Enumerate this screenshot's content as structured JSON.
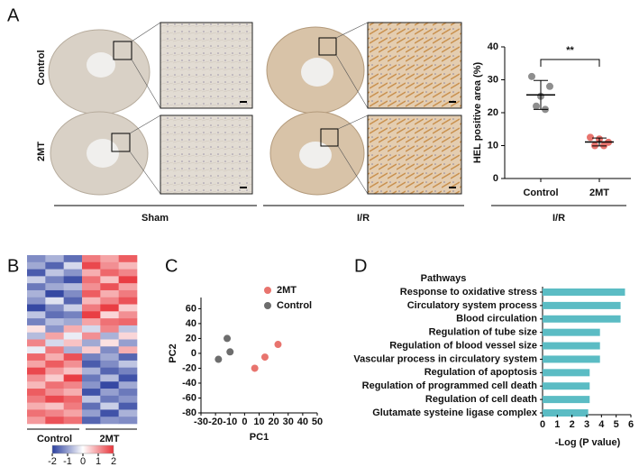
{
  "figure": {
    "panels": [
      "A",
      "B",
      "C",
      "D"
    ],
    "rows": [
      "Control",
      "2MT"
    ],
    "groups": [
      "Sham",
      "I/R"
    ]
  },
  "chart_data": [
    {
      "type": "dot",
      "ylabel": "HEL positive area (%)",
      "categories": [
        "Control",
        "2MT"
      ],
      "points": [
        [
          31,
          28,
          22,
          21,
          25
        ],
        [
          12.5,
          11,
          10,
          10,
          12
        ]
      ],
      "colors": [
        "#8e8e8e",
        "#e8746e"
      ],
      "means": [
        25.4,
        11.1
      ],
      "errors": [
        4.4,
        1.2
      ],
      "significance": "**",
      "group_label": "I/R",
      "ylim": [
        0,
        40
      ],
      "yticks": [
        0,
        10,
        20,
        30,
        40
      ]
    },
    {
      "type": "heatmap",
      "groups": [
        "Control",
        "2MT"
      ],
      "colormap": [
        "#2b3f9e",
        "#ffffff",
        "#e8343a"
      ],
      "clim": [
        -2,
        2
      ],
      "cticks": [
        -2,
        -1,
        0,
        1,
        2
      ],
      "values": [
        [
          -1.2,
          -0.8,
          -1.5,
          1.3,
          0.9,
          1.6
        ],
        [
          -0.9,
          -1.6,
          -0.4,
          1.8,
          1.1,
          0.7
        ],
        [
          -1.7,
          -0.6,
          -1.1,
          0.8,
          1.5,
          1.2
        ],
        [
          -0.5,
          -1.3,
          -1.8,
          1.4,
          0.6,
          1.9
        ],
        [
          -1.4,
          -0.9,
          -0.7,
          1.1,
          1.7,
          0.9
        ],
        [
          -0.8,
          -1.9,
          -1.2,
          1.6,
          0.8,
          1.3
        ],
        [
          -1.1,
          -0.3,
          -1.6,
          0.7,
          1.2,
          1.7
        ],
        [
          -1.9,
          -1.2,
          -0.5,
          1.3,
          1.9,
          0.5
        ],
        [
          -0.6,
          -1.5,
          -1.3,
          1.9,
          0.4,
          1.1
        ],
        [
          -1.3,
          -0.7,
          -0.9,
          0.9,
          1.4,
          1.5
        ],
        [
          0.3,
          -1.1,
          0.8,
          -0.4,
          1.2,
          -0.6
        ],
        [
          -0.7,
          0.9,
          -0.2,
          1.1,
          -0.8,
          0.4
        ],
        [
          1.2,
          -0.4,
          0.6,
          -0.9,
          0.3,
          -1.0
        ],
        [
          -0.2,
          1.3,
          -0.8,
          0.5,
          -1.2,
          0.8
        ],
        [
          1.5,
          0.8,
          1.7,
          -1.3,
          -0.9,
          -1.6
        ],
        [
          0.9,
          1.6,
          1.1,
          -1.7,
          -1.2,
          -0.6
        ],
        [
          1.8,
          1.0,
          0.6,
          -0.8,
          -1.6,
          -1.3
        ],
        [
          1.1,
          0.5,
          1.9,
          -1.4,
          -0.7,
          -1.8
        ],
        [
          0.7,
          1.4,
          1.2,
          -1.1,
          -1.9,
          -0.9
        ],
        [
          1.6,
          1.1,
          0.8,
          -1.8,
          -1.0,
          -1.4
        ],
        [
          1.3,
          1.8,
          1.5,
          -0.6,
          -1.4,
          -1.1
        ],
        [
          0.8,
          0.6,
          1.3,
          -1.5,
          -0.5,
          -1.7
        ],
        [
          1.4,
          1.2,
          0.9,
          -1.0,
          -1.8,
          -0.8
        ],
        [
          1.0,
          1.7,
          1.4,
          -1.6,
          -1.1,
          -1.2
        ]
      ]
    },
    {
      "type": "scatter",
      "xlabel": "PC1",
      "ylabel": "PC2",
      "series": [
        {
          "name": "2MT",
          "color": "#e8746e",
          "x": [
            7,
            14,
            23
          ],
          "y": [
            -20,
            -5,
            12
          ]
        },
        {
          "name": "Control",
          "color": "#6d6d6d",
          "x": [
            -12,
            -10,
            -18
          ],
          "y": [
            20,
            2,
            -8
          ]
        }
      ],
      "xlim": [
        -30,
        50
      ],
      "xticks": [
        -30,
        -20,
        -10,
        0,
        10,
        20,
        30,
        40,
        50
      ],
      "ylim": [
        -80,
        75
      ],
      "yticks": [
        -80,
        -60,
        -40,
        -20,
        0,
        20,
        40,
        60
      ]
    },
    {
      "type": "hbar",
      "title": "Pathways",
      "xlabel": "-Log (P value)",
      "color": "#5bbcc4",
      "categories": [
        "Response to oxidative stress",
        "Circulatory system process",
        "Blood circulation",
        "Regulation of tube size",
        "Regulation of blood vessel size",
        "Vascular process in circulatory system",
        "Regulation of apoptosis",
        "Regulation of programmed cell death",
        "Regulation of cell death",
        "Glutamate systeine ligase complex"
      ],
      "values": [
        5.6,
        5.3,
        5.3,
        3.9,
        3.9,
        3.9,
        3.2,
        3.2,
        3.2,
        3.1
      ],
      "xlim": [
        0,
        6
      ],
      "xticks": [
        0,
        1,
        2,
        3,
        4,
        5,
        6
      ]
    }
  ]
}
